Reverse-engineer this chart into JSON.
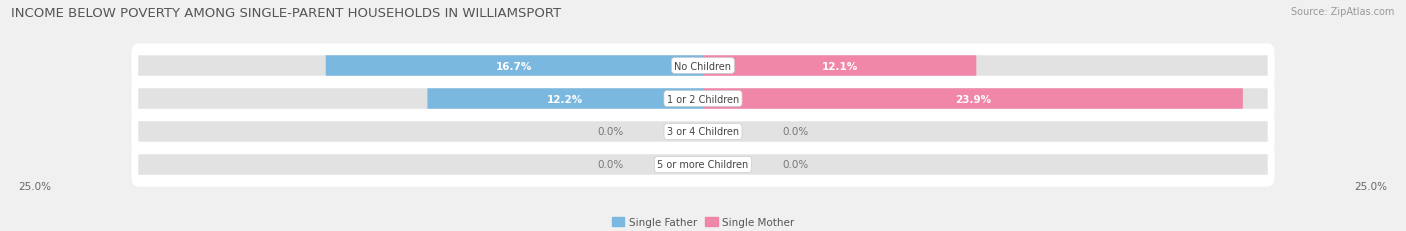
{
  "title": "INCOME BELOW POVERTY AMONG SINGLE-PARENT HOUSEHOLDS IN WILLIAMSPORT",
  "source": "Source: ZipAtlas.com",
  "categories": [
    "No Children",
    "1 or 2 Children",
    "3 or 4 Children",
    "5 or more Children"
  ],
  "single_father": [
    16.7,
    12.2,
    0.0,
    0.0
  ],
  "single_mother": [
    12.1,
    23.9,
    0.0,
    0.0
  ],
  "father_color": "#7ab8e0",
  "mother_color": "#f086a8",
  "max_value": 25.0,
  "bar_height": 0.62,
  "background_color": "#f0f0f0",
  "bar_bg_color": "#e2e2e2",
  "row_bg_color": "#ffffff",
  "axis_label_left": "25.0%",
  "axis_label_right": "25.0%",
  "legend_father": "Single Father",
  "legend_mother": "Single Mother",
  "title_fontsize": 9.5,
  "source_fontsize": 7,
  "label_fontsize": 7.5,
  "category_fontsize": 7,
  "value_label_inside_color": "#ffffff",
  "value_label_outside_color": "#777777"
}
